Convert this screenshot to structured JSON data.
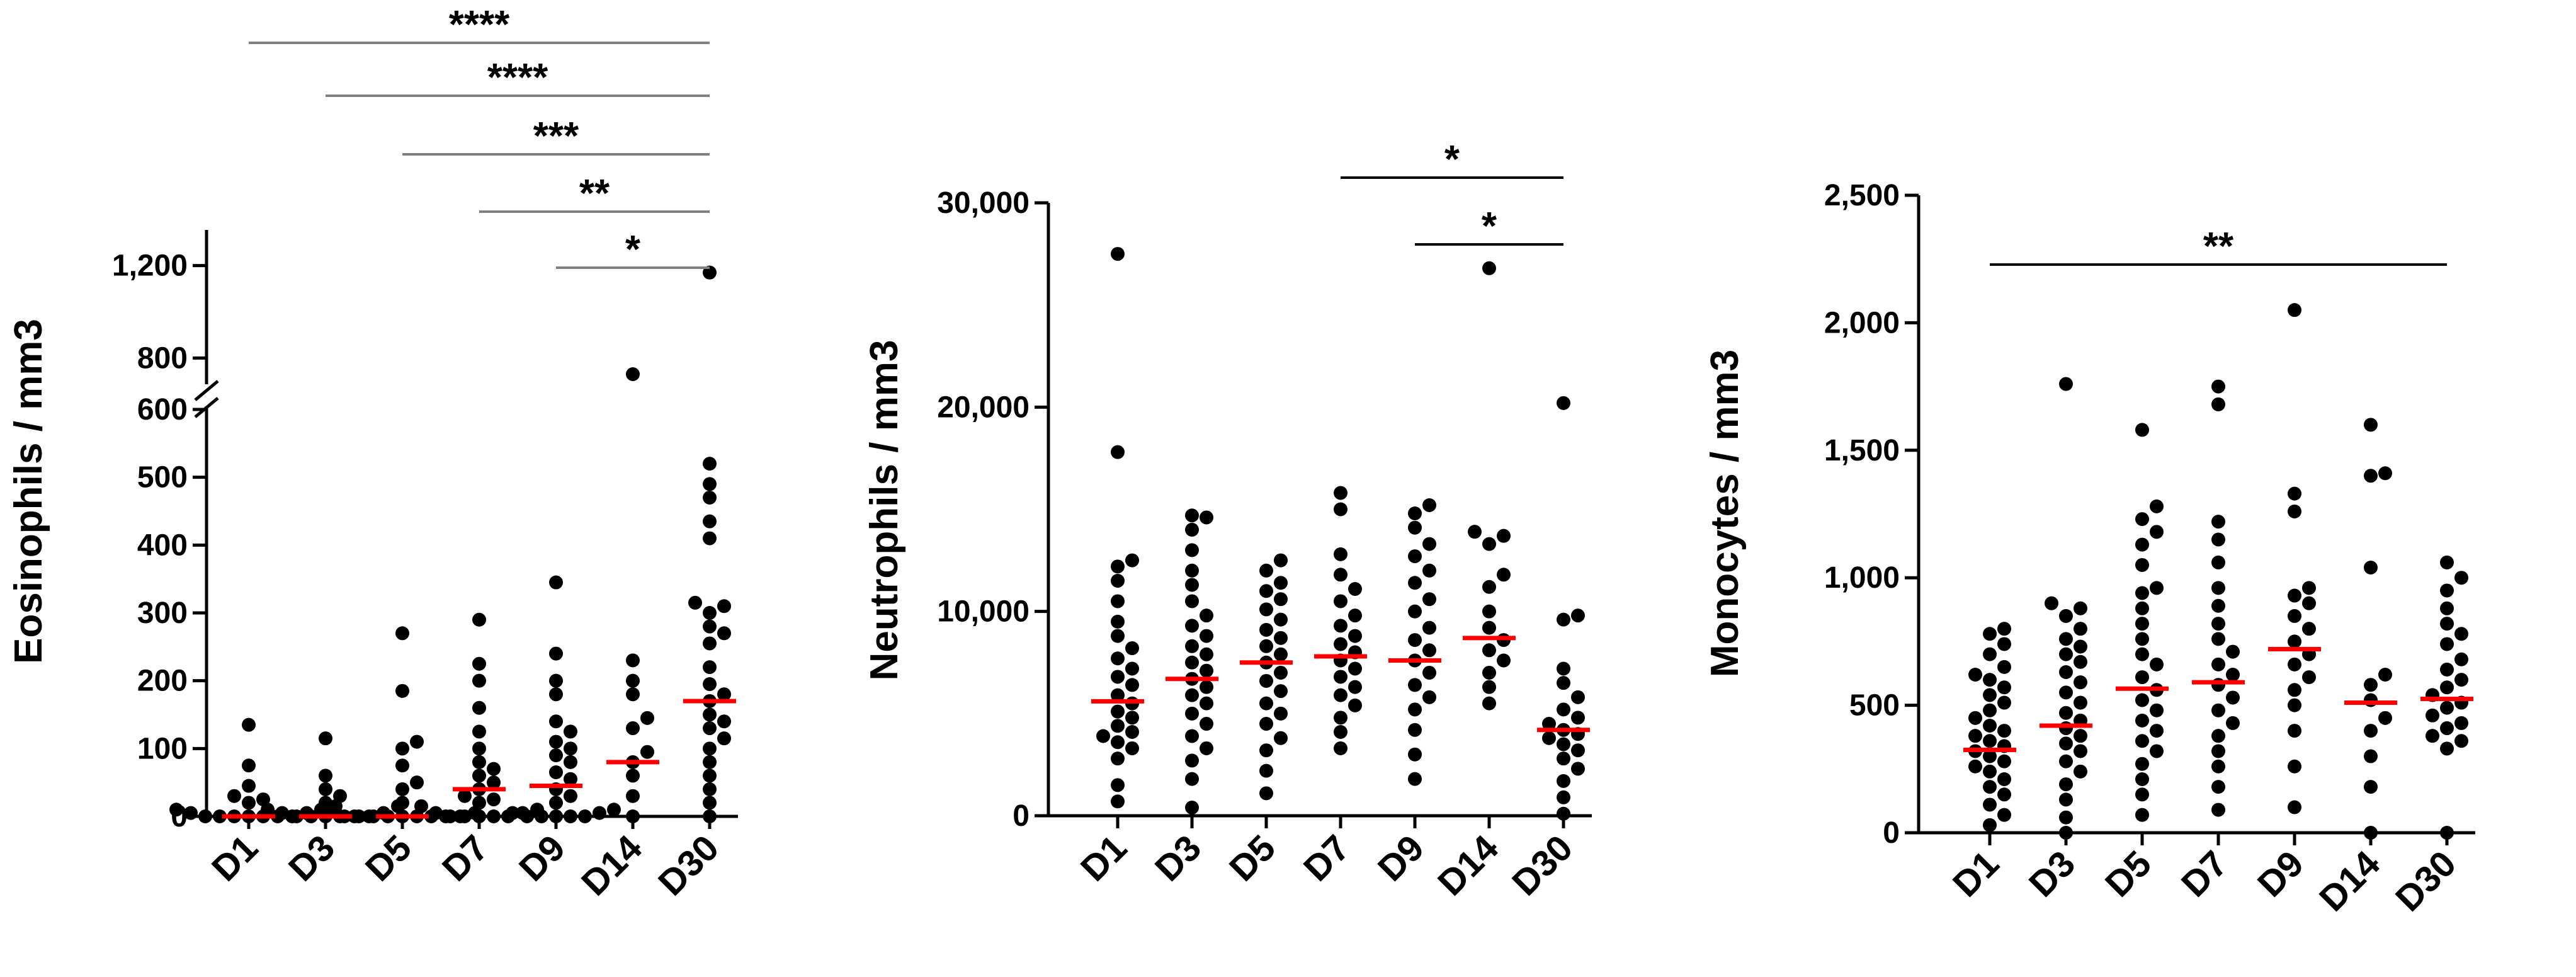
{
  "chart_data": [
    {
      "type": "scatter",
      "ylabel": "Eosinophils / mm3",
      "categories": [
        "D1",
        "D3",
        "D5",
        "D7",
        "D9",
        "D14",
        "D30"
      ],
      "y_scale": "broken",
      "ylim_lower": [
        0,
        600
      ],
      "ylim_upper": [
        700,
        1300
      ],
      "yticks": [
        {
          "value": 0,
          "label": "0"
        },
        {
          "value": 100,
          "label": "100"
        },
        {
          "value": 200,
          "label": "200"
        },
        {
          "value": 300,
          "label": "300"
        },
        {
          "value": 400,
          "label": "400"
        },
        {
          "value": 500,
          "label": "500"
        },
        {
          "value": 600,
          "label": "600"
        },
        {
          "value": 800,
          "label": "800"
        },
        {
          "value": 1200,
          "label": "1,200"
        }
      ],
      "points": [
        [
          0,
          0
        ],
        [
          0,
          0
        ],
        [
          0,
          0
        ],
        [
          0,
          0
        ],
        [
          0,
          0
        ],
        [
          0,
          0
        ],
        [
          0,
          0
        ],
        [
          0,
          5
        ],
        [
          0,
          5
        ],
        [
          0,
          10
        ],
        [
          0,
          10
        ],
        [
          0,
          15
        ],
        [
          0,
          20
        ],
        [
          0,
          25
        ],
        [
          0,
          30
        ],
        [
          0,
          45
        ],
        [
          0,
          75
        ],
        [
          0,
          135
        ],
        [
          0,
          0
        ],
        [
          0,
          0
        ],
        [
          0,
          0
        ],
        [
          0,
          0
        ],
        [
          0,
          0
        ],
        [
          0,
          0
        ],
        [
          0,
          5
        ],
        [
          0,
          5
        ],
        [
          0,
          10
        ],
        [
          0,
          15
        ],
        [
          0,
          20
        ],
        [
          0,
          30
        ],
        [
          0,
          40
        ],
        [
          0,
          60
        ],
        [
          0,
          115
        ],
        [
          0,
          0
        ],
        [
          0,
          0
        ],
        [
          0,
          0
        ],
        [
          0,
          0
        ],
        [
          0,
          0
        ],
        [
          0,
          0
        ],
        [
          0,
          0
        ],
        [
          0,
          0
        ],
        [
          0,
          0
        ],
        [
          0,
          5
        ],
        [
          0,
          10
        ],
        [
          0,
          20
        ],
        [
          0,
          40
        ],
        [
          0,
          50
        ],
        [
          0,
          75
        ],
        [
          0,
          100
        ],
        [
          0,
          110
        ],
        [
          0,
          185
        ],
        [
          0,
          270
        ],
        [
          0,
          0
        ],
        [
          0,
          0
        ],
        [
          0,
          0
        ],
        [
          0,
          0
        ],
        [
          0,
          0
        ],
        [
          0,
          5
        ],
        [
          0,
          5
        ],
        [
          0,
          10
        ],
        [
          0,
          15
        ],
        [
          0,
          20
        ],
        [
          0,
          25
        ],
        [
          0,
          30
        ],
        [
          0,
          40
        ],
        [
          0,
          50
        ],
        [
          0,
          60
        ],
        [
          0,
          70
        ],
        [
          0,
          80
        ],
        [
          0,
          100
        ],
        [
          0,
          125
        ],
        [
          0,
          160
        ],
        [
          0,
          200
        ],
        [
          0,
          225
        ],
        [
          0,
          290
        ],
        [
          0,
          0
        ],
        [
          0,
          0
        ],
        [
          0,
          0
        ],
        [
          0,
          0
        ],
        [
          0,
          0
        ],
        [
          0,
          5
        ],
        [
          0,
          5
        ],
        [
          0,
          10
        ],
        [
          0,
          20
        ],
        [
          0,
          30
        ],
        [
          0,
          40
        ],
        [
          0,
          55
        ],
        [
          0,
          65
        ],
        [
          0,
          80
        ],
        [
          0,
          90
        ],
        [
          0,
          100
        ],
        [
          0,
          110
        ],
        [
          0,
          125
        ],
        [
          0,
          140
        ],
        [
          0,
          180
        ],
        [
          0,
          200
        ],
        [
          0,
          240
        ],
        [
          0,
          345
        ],
        [
          0,
          0
        ],
        [
          0,
          30
        ],
        [
          0,
          60
        ],
        [
          0,
          80
        ],
        [
          0,
          95
        ],
        [
          0,
          130
        ],
        [
          0,
          145
        ],
        [
          0,
          180
        ],
        [
          0,
          200
        ],
        [
          0,
          230
        ],
        [
          0,
          730
        ],
        [
          0,
          0
        ],
        [
          0,
          20
        ],
        [
          0,
          40
        ],
        [
          0,
          60
        ],
        [
          0,
          80
        ],
        [
          0,
          100
        ],
        [
          0,
          115
        ],
        [
          0,
          130
        ],
        [
          0,
          140
        ],
        [
          0,
          150
        ],
        [
          0,
          170
        ],
        [
          0,
          180
        ],
        [
          0,
          195
        ],
        [
          0,
          220
        ],
        [
          0,
          255
        ],
        [
          0,
          270
        ],
        [
          0,
          280
        ],
        [
          0,
          300
        ],
        [
          0,
          310
        ],
        [
          0,
          315
        ],
        [
          0,
          410
        ],
        [
          0,
          435
        ],
        [
          0,
          470
        ],
        [
          0,
          490
        ],
        [
          0,
          520
        ],
        [
          0,
          1170
        ]
      ],
      "series_counts": [
        18,
        15,
        19,
        23,
        23,
        11,
        26
      ],
      "medians": [
        0,
        0,
        0,
        40,
        45,
        80,
        170
      ],
      "significance": [
        {
          "from": "D1",
          "to": "D30",
          "label": "****"
        },
        {
          "from": "D3",
          "to": "D30",
          "label": "****"
        },
        {
          "from": "D5",
          "to": "D30",
          "label": "***"
        },
        {
          "from": "D7",
          "to": "D30",
          "label": "**"
        },
        {
          "from": "D9",
          "to": "D30",
          "label": "*"
        }
      ]
    },
    {
      "type": "scatter",
      "ylabel": "Neutrophils / mm3",
      "categories": [
        "D1",
        "D3",
        "D5",
        "D7",
        "D9",
        "D14",
        "D30"
      ],
      "ylim": [
        0,
        30000
      ],
      "yticks": [
        {
          "value": 0,
          "label": "0"
        },
        {
          "value": 10000,
          "label": "10,000"
        },
        {
          "value": 20000,
          "label": "20,000"
        },
        {
          "value": 30000,
          "label": "30,000"
        }
      ],
      "groups": [
        [
          700,
          1500,
          2800,
          3300,
          3600,
          3900,
          4100,
          4400,
          4800,
          5100,
          5500,
          5900,
          6400,
          6800,
          7200,
          7700,
          8200,
          8800,
          9500,
          10500,
          11500,
          12200,
          12500,
          17800,
          27500
        ],
        [
          400,
          1800,
          2700,
          3300,
          3900,
          4500,
          5000,
          5500,
          5900,
          6300,
          6700,
          7100,
          7500,
          7900,
          8300,
          8800,
          9300,
          9800,
          10500,
          11300,
          12000,
          13000,
          14000,
          14600,
          14700
        ],
        [
          1100,
          2200,
          3200,
          3800,
          4500,
          5000,
          5500,
          6100,
          6600,
          7000,
          7500,
          7900,
          8300,
          8700,
          9100,
          9600,
          10100,
          10600,
          11000,
          11400,
          12000,
          12500
        ],
        [
          3300,
          4100,
          4800,
          5400,
          5900,
          6300,
          6800,
          7200,
          7600,
          8000,
          8400,
          8800,
          9300,
          9800,
          10500,
          11100,
          11800,
          12800,
          15000,
          15800
        ],
        [
          1800,
          3000,
          4200,
          5200,
          5800,
          6400,
          7000,
          7600,
          8100,
          8600,
          9200,
          10000,
          10600,
          11400,
          12000,
          12700,
          13300,
          14100,
          14800,
          15200
        ],
        [
          5500,
          6300,
          7000,
          7600,
          8100,
          8600,
          9200,
          10000,
          11200,
          11800,
          13300,
          13700,
          13900,
          26800
        ],
        [
          100,
          900,
          1700,
          2300,
          2800,
          3200,
          3500,
          3800,
          4000,
          4200,
          4500,
          4800,
          5200,
          5800,
          6500,
          7200,
          9600,
          9800,
          20200
        ]
      ],
      "medians": [
        5600,
        6700,
        7500,
        7800,
        7600,
        8700,
        4200
      ],
      "significance": [
        {
          "from": "D7",
          "to": "D30",
          "label": "*"
        },
        {
          "from": "D9",
          "to": "D30",
          "label": "*"
        }
      ]
    },
    {
      "type": "scatter",
      "ylabel": "Monocytes / mm3",
      "categories": [
        "D1",
        "D3",
        "D5",
        "D7",
        "D9",
        "D14",
        "D30"
      ],
      "ylim": [
        0,
        2500
      ],
      "yticks": [
        {
          "value": 0,
          "label": "0"
        },
        {
          "value": 500,
          "label": "500"
        },
        {
          "value": 1000,
          "label": "1,000"
        },
        {
          "value": 1500,
          "label": "1,500"
        },
        {
          "value": 2000,
          "label": "2,000"
        },
        {
          "value": 2500,
          "label": "2,500"
        }
      ],
      "groups": [
        [
          30,
          70,
          110,
          150,
          180,
          210,
          240,
          260,
          280,
          300,
          320,
          340,
          360,
          380,
          400,
          420,
          450,
          480,
          510,
          540,
          570,
          600,
          620,
          650,
          700,
          740,
          780,
          800
        ],
        [
          0,
          60,
          130,
          190,
          240,
          280,
          320,
          350,
          380,
          410,
          440,
          470,
          510,
          550,
          590,
          630,
          670,
          700,
          730,
          760,
          800,
          850,
          880,
          900,
          1760
        ],
        [
          70,
          150,
          210,
          270,
          320,
          360,
          400,
          440,
          480,
          520,
          560,
          610,
          660,
          700,
          760,
          820,
          880,
          940,
          960,
          1050,
          1130,
          1180,
          1230,
          1280,
          1580
        ],
        [
          90,
          180,
          260,
          320,
          380,
          430,
          480,
          530,
          580,
          620,
          660,
          710,
          760,
          820,
          890,
          960,
          1060,
          1150,
          1220,
          1680,
          1750
        ],
        [
          100,
          260,
          400,
          500,
          560,
          610,
          660,
          700,
          750,
          800,
          850,
          900,
          930,
          960,
          1260,
          1330,
          2050
        ],
        [
          0,
          180,
          300,
          400,
          450,
          520,
          580,
          620,
          1040,
          1400,
          1410,
          1600
        ],
        [
          0,
          330,
          360,
          380,
          410,
          430,
          460,
          490,
          510,
          540,
          570,
          600,
          640,
          680,
          740,
          780,
          820,
          880,
          950,
          1000,
          1060
        ]
      ],
      "medians": [
        325,
        420,
        565,
        590,
        720,
        510,
        525
      ],
      "significance": [
        {
          "from": "D1",
          "to": "D30",
          "label": "**"
        }
      ]
    }
  ]
}
